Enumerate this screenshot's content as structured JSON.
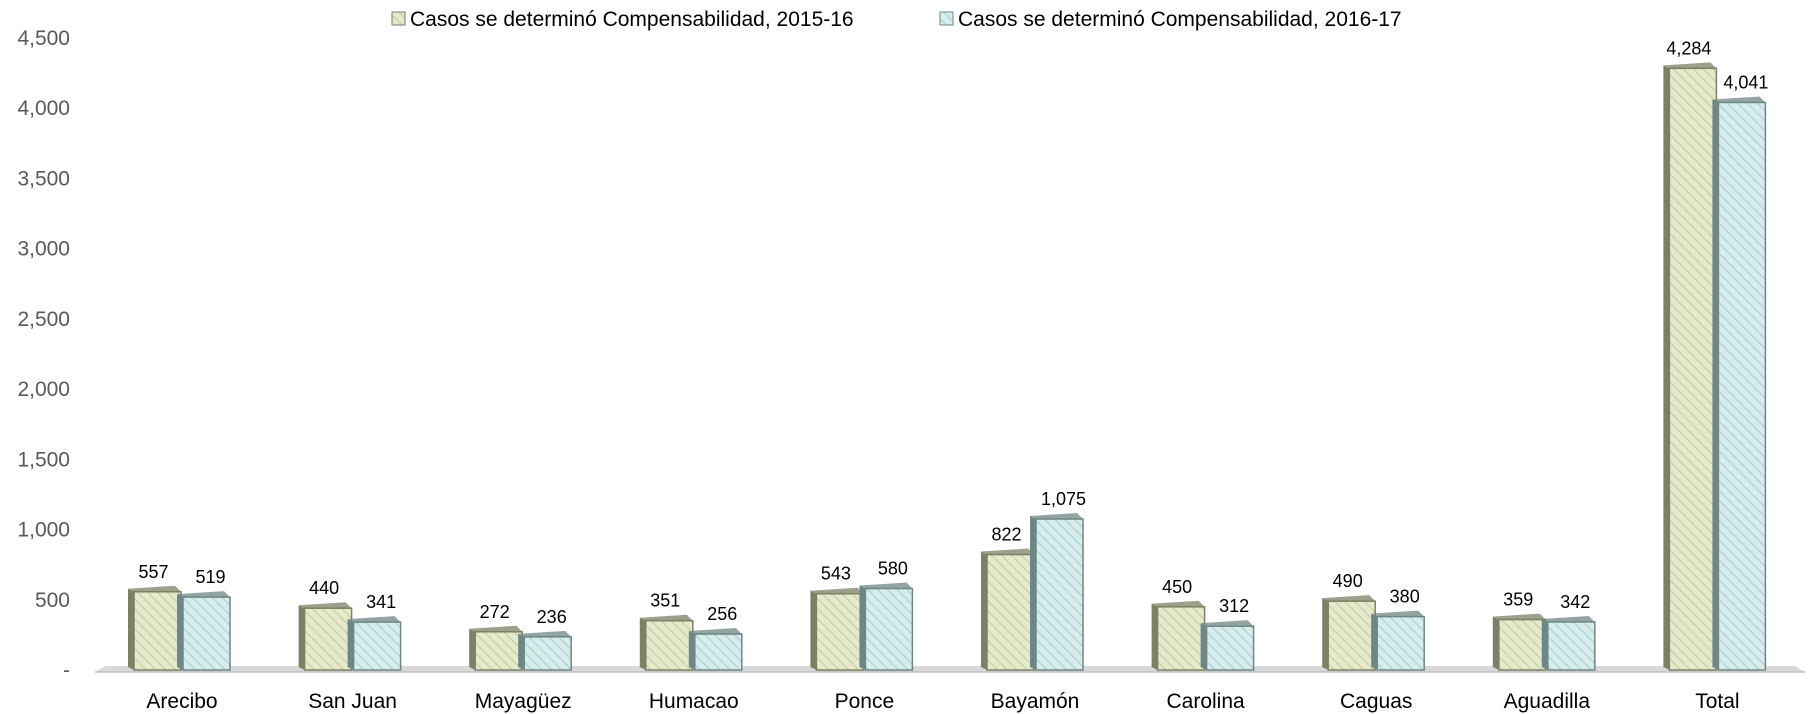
{
  "chart_data": {
    "type": "bar",
    "categories": [
      "Arecibo",
      "San Juan",
      "Mayagüez",
      "Humacao",
      "Ponce",
      "Bayamón",
      "Carolina",
      "Caguas",
      "Aguadilla",
      "Total"
    ],
    "series": [
      {
        "name": "Casos se determinó Compensabilidad, 2015-16",
        "values": [
          557,
          440,
          272,
          351,
          543,
          822,
          450,
          490,
          359,
          4284
        ],
        "labels": [
          "557",
          "440",
          "272",
          "351",
          "543",
          "822",
          "450",
          "490",
          "359",
          "4,284"
        ],
        "color": "#e6e9cc",
        "stripe": "#c6cba0",
        "side_color": "#7c8064"
      },
      {
        "name": "Casos se determinó Compensabilidad, 2016-17",
        "values": [
          519,
          341,
          236,
          256,
          580,
          1075,
          312,
          380,
          342,
          4041
        ],
        "labels": [
          "519",
          "341",
          "236",
          "256",
          "580",
          "1,075",
          "312",
          "380",
          "342",
          "4,041"
        ],
        "color": "#d7ecec",
        "stripe": "#a9cfcf",
        "side_color": "#6f8784"
      }
    ],
    "yticks": [
      0,
      500,
      1000,
      1500,
      2000,
      2500,
      3000,
      3500,
      4000,
      4500
    ],
    "ytick_labels": [
      "-",
      "500",
      "1,000",
      "1,500",
      "2,000",
      "2,500",
      "3,000",
      "3,500",
      "4,000",
      "4,500"
    ],
    "ylim": [
      0,
      4500
    ],
    "title": "",
    "xlabel": "",
    "ylabel": "",
    "legend_position": "top",
    "grid": false,
    "three_d": true
  }
}
